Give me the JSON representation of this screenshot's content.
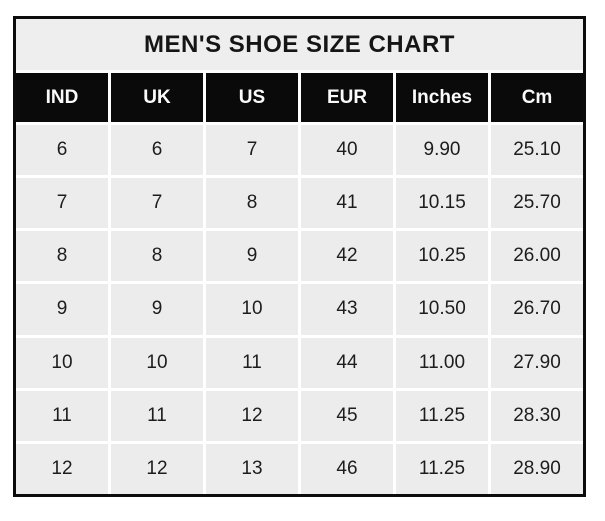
{
  "chart_data": {
    "type": "table",
    "title": "MEN'S SHOE SIZE CHART",
    "columns": [
      "IND",
      "UK",
      "US",
      "EUR",
      "Inches",
      "Cm"
    ],
    "rows": [
      [
        "6",
        "6",
        "7",
        "40",
        "9.90",
        "25.10"
      ],
      [
        "7",
        "7",
        "8",
        "41",
        "10.15",
        "25.70"
      ],
      [
        "8",
        "8",
        "9",
        "42",
        "10.25",
        "26.00"
      ],
      [
        "9",
        "9",
        "10",
        "43",
        "10.50",
        "26.70"
      ],
      [
        "10",
        "10",
        "11",
        "44",
        "11.00",
        "27.90"
      ],
      [
        "11",
        "11",
        "12",
        "45",
        "11.25",
        "28.30"
      ],
      [
        "12",
        "12",
        "13",
        "46",
        "11.25",
        "28.90"
      ]
    ]
  },
  "colors": {
    "outer_border": "#0c0c0c",
    "title_bg": "#eeeeee",
    "header_bg": "#0a0a0a",
    "header_text": "#fafafa",
    "cell_bg": "#ececec",
    "gridline": "#ffffff",
    "body_text": "#1d1d1d"
  }
}
